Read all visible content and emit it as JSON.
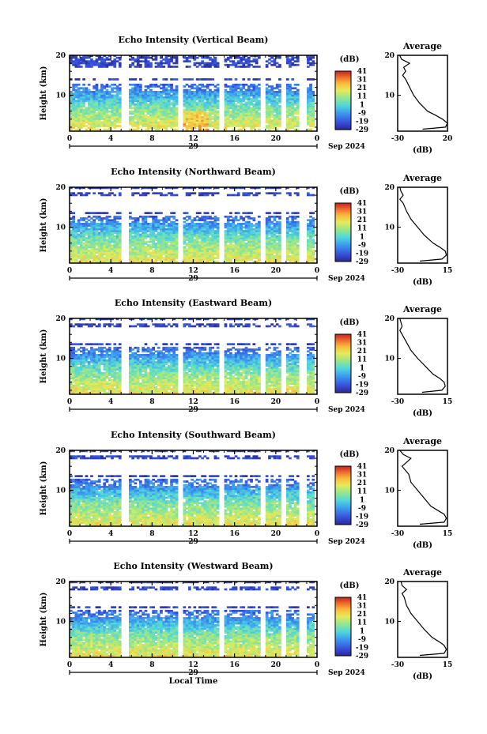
{
  "chart_data": [
    {
      "type": "heatmap",
      "title": "Echo Intensity (Vertical Beam)",
      "ylabel": "Height (km)",
      "ylim": [
        1,
        20
      ],
      "y_ticks": [
        "20",
        "10"
      ],
      "x_ticks": [
        "0",
        "4",
        "8",
        "12",
        "16",
        "20",
        "0"
      ],
      "xlim": [
        0,
        24
      ],
      "date_day": "29",
      "date_month_year": "Sep 2024",
      "colorbar": {
        "unit": "(dB)",
        "ticks": [
          "41",
          "31",
          "21",
          "11",
          "1",
          "-9",
          "-19",
          "-29"
        ],
        "range": [
          -29,
          41
        ]
      },
      "profile": {
        "title": "Average",
        "xlabel": "(dB)",
        "x_ticks": [
          "-30",
          "20"
        ],
        "xlim": [
          -30,
          20
        ],
        "y_ticks": [
          "20",
          "10"
        ],
        "heights": [
          1.5,
          2,
          3,
          4,
          5,
          6,
          8,
          10,
          12,
          14,
          15,
          16,
          17,
          18,
          19,
          20
        ],
        "values": [
          -5,
          18,
          20,
          15,
          8,
          0,
          -8,
          -14,
          -18,
          -22,
          -25,
          -22,
          -24,
          -18,
          -26,
          -28
        ]
      }
    },
    {
      "type": "heatmap",
      "title": "Echo Intensity (Northward Beam)",
      "ylabel": "Height (km)",
      "ylim": [
        1,
        20
      ],
      "y_ticks": [
        "20",
        "10"
      ],
      "x_ticks": [
        "0",
        "4",
        "8",
        "12",
        "16",
        "20",
        "0"
      ],
      "xlim": [
        0,
        24
      ],
      "date_day": "29",
      "date_month_year": "Sep 2024",
      "colorbar": {
        "unit": "(dB)",
        "ticks": [
          "41",
          "31",
          "21",
          "11",
          "1",
          "-9",
          "-19",
          "-29"
        ],
        "range": [
          -29,
          41
        ]
      },
      "profile": {
        "title": "Average",
        "xlabel": "(dB)",
        "x_ticks": [
          "-30",
          "15"
        ],
        "xlim": [
          -30,
          15
        ],
        "y_ticks": [
          "20",
          "10"
        ],
        "heights": [
          1.5,
          2,
          3,
          4,
          5,
          6,
          8,
          10,
          12,
          14,
          16,
          17,
          18,
          19,
          20
        ],
        "values": [
          -10,
          10,
          14,
          13,
          8,
          2,
          -6,
          -12,
          -18,
          -22,
          -25,
          -28,
          -25,
          -27,
          -28
        ]
      }
    },
    {
      "type": "heatmap",
      "title": "Echo Intensity (Eastward Beam)",
      "ylabel": "Height (km)",
      "ylim": [
        1,
        20
      ],
      "y_ticks": [
        "20",
        "10"
      ],
      "x_ticks": [
        "0",
        "4",
        "8",
        "12",
        "16",
        "20",
        "0"
      ],
      "xlim": [
        0,
        24
      ],
      "date_day": "29",
      "date_month_year": "Sep 2024",
      "colorbar": {
        "unit": "(dB)",
        "ticks": [
          "41",
          "31",
          "21",
          "11",
          "1",
          "-9",
          "-19",
          "-29"
        ],
        "range": [
          -29,
          41
        ]
      },
      "profile": {
        "title": "Average",
        "xlabel": "(dB)",
        "x_ticks": [
          "-30",
          "15"
        ],
        "xlim": [
          -30,
          15
        ],
        "y_ticks": [
          "20",
          "10"
        ],
        "heights": [
          1.5,
          2,
          3,
          4,
          5,
          6,
          8,
          10,
          12,
          14,
          16,
          17,
          18,
          19,
          20
        ],
        "values": [
          -8,
          10,
          13,
          12,
          8,
          2,
          -5,
          -12,
          -18,
          -22,
          -26,
          -28,
          -26,
          -27,
          -28
        ]
      }
    },
    {
      "type": "heatmap",
      "title": "Echo Intensity (Southward Beam)",
      "ylabel": "Height (km)",
      "ylim": [
        1,
        20
      ],
      "y_ticks": [
        "20",
        "10"
      ],
      "x_ticks": [
        "0",
        "4",
        "8",
        "12",
        "16",
        "20",
        "0"
      ],
      "xlim": [
        0,
        24
      ],
      "date_day": "29",
      "date_month_year": "Sep 2024",
      "colorbar": {
        "unit": "(dB)",
        "ticks": [
          "41",
          "31",
          "21",
          "11",
          "1",
          "-9",
          "-19",
          "-29"
        ],
        "range": [
          -29,
          41
        ]
      },
      "profile": {
        "title": "Average",
        "xlabel": "(dB)",
        "x_ticks": [
          "-30",
          "15"
        ],
        "xlim": [
          -30,
          15
        ],
        "y_ticks": [
          "20",
          "10"
        ],
        "heights": [
          1.5,
          2,
          3,
          4,
          5,
          6,
          8,
          10,
          12,
          14,
          16,
          17,
          18,
          19,
          20
        ],
        "values": [
          -10,
          12,
          14,
          12,
          6,
          0,
          -6,
          -12,
          -18,
          -20,
          -26,
          -22,
          -18,
          -25,
          -28
        ]
      }
    },
    {
      "type": "heatmap",
      "title": "Echo Intensity (Westward Beam)",
      "ylabel": "Height (km)",
      "ylim": [
        1,
        20
      ],
      "y_ticks": [
        "20",
        "10"
      ],
      "x_ticks": [
        "0",
        "4",
        "8",
        "12",
        "16",
        "20",
        "0"
      ],
      "xlim": [
        0,
        24
      ],
      "date_day": "29",
      "date_month_year": "Sep 2024",
      "xlabel": "Local Time",
      "colorbar": {
        "unit": "(dB)",
        "ticks": [
          "41",
          "31",
          "21",
          "11",
          "1",
          "-9",
          "-19",
          "-29"
        ],
        "range": [
          -29,
          41
        ]
      },
      "profile": {
        "title": "Average",
        "xlabel": "(dB)",
        "x_ticks": [
          "-30",
          "15"
        ],
        "xlim": [
          -30,
          15
        ],
        "y_ticks": [
          "20",
          "10"
        ],
        "heights": [
          1.5,
          2,
          3,
          4,
          5,
          6,
          8,
          10,
          12,
          14,
          16,
          17,
          18,
          19,
          20
        ],
        "values": [
          -10,
          12,
          14,
          12,
          7,
          1,
          -6,
          -12,
          -18,
          -22,
          -24,
          -26,
          -22,
          -26,
          -27
        ]
      }
    }
  ]
}
